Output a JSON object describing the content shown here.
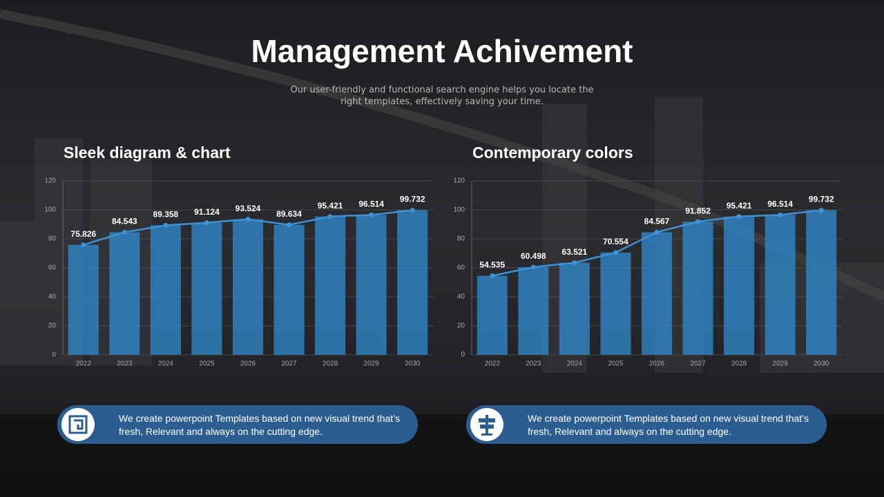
{
  "title": "Management Achivement",
  "subtitle": "Our user-friendly and functional search engine helps you locate the right templates, effectively saving your time.",
  "chart_data": [
    {
      "type": "bar",
      "title": "Sleek diagram & chart",
      "categories": [
        "2022",
        "2023",
        "2024",
        "2025",
        "2026",
        "2027",
        "2028",
        "2029",
        "2030"
      ],
      "values": [
        75.826,
        84.543,
        89.358,
        91.124,
        93.524,
        89.634,
        95.421,
        96.514,
        99.732
      ],
      "color": "#2f88cc",
      "line": true,
      "line_color": "#3d93d6",
      "ylim": [
        0,
        120
      ],
      "yticks": [
        0,
        20,
        40,
        60,
        80,
        100,
        120
      ],
      "grid": true
    },
    {
      "type": "bar",
      "title": "Contemporary colors",
      "categories": [
        "2022",
        "2023",
        "2024",
        "2025",
        "2026",
        "2027",
        "2028",
        "2029",
        "2030"
      ],
      "values": [
        54.535,
        60.498,
        63.521,
        70.554,
        84.567,
        91.852,
        95.421,
        96.514,
        99.732
      ],
      "color": "#2f88cc",
      "line": true,
      "line_color": "#3d93d6",
      "ylim": [
        0,
        120
      ],
      "yticks": [
        0,
        20,
        40,
        60,
        80,
        100,
        120
      ],
      "grid": true
    }
  ],
  "callouts": [
    {
      "text": "We create powerpoint  Templates based on new visual trend that’s fresh, Relevant and always on the cutting edge."
    },
    {
      "text": "We create powerpoint  Templates based on new visual trend that’s fresh, Relevant and always on the cutting edge."
    }
  ]
}
